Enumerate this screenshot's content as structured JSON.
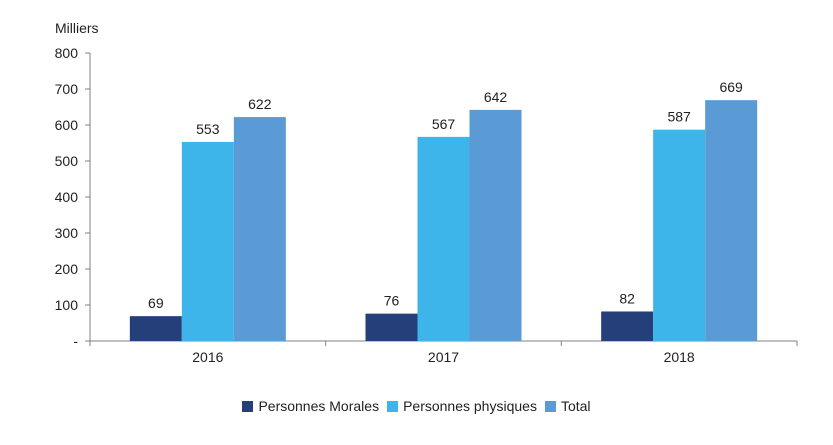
{
  "chart_data": {
    "type": "bar",
    "title": "",
    "xlabel": "",
    "ylabel": "Milliers",
    "categories": [
      "2016",
      "2017",
      "2018"
    ],
    "series": [
      {
        "name": "Personnes Morales",
        "values": [
          69,
          76,
          82
        ],
        "color": "#243F7A"
      },
      {
        "name": "Personnes physiques",
        "values": [
          553,
          567,
          587
        ],
        "color": "#3DB4EA"
      },
      {
        "name": "Total",
        "values": [
          622,
          642,
          669
        ],
        "color": "#5A9BD5"
      }
    ],
    "ylim": [
      0,
      800
    ],
    "yticks": [
      0,
      100,
      200,
      300,
      400,
      500,
      600,
      700,
      800
    ],
    "ytick_labels": [
      "-",
      "100",
      "200",
      "300",
      "400",
      "500",
      "600",
      "700",
      "800"
    ],
    "grid": false,
    "legend_position": "bottom"
  }
}
